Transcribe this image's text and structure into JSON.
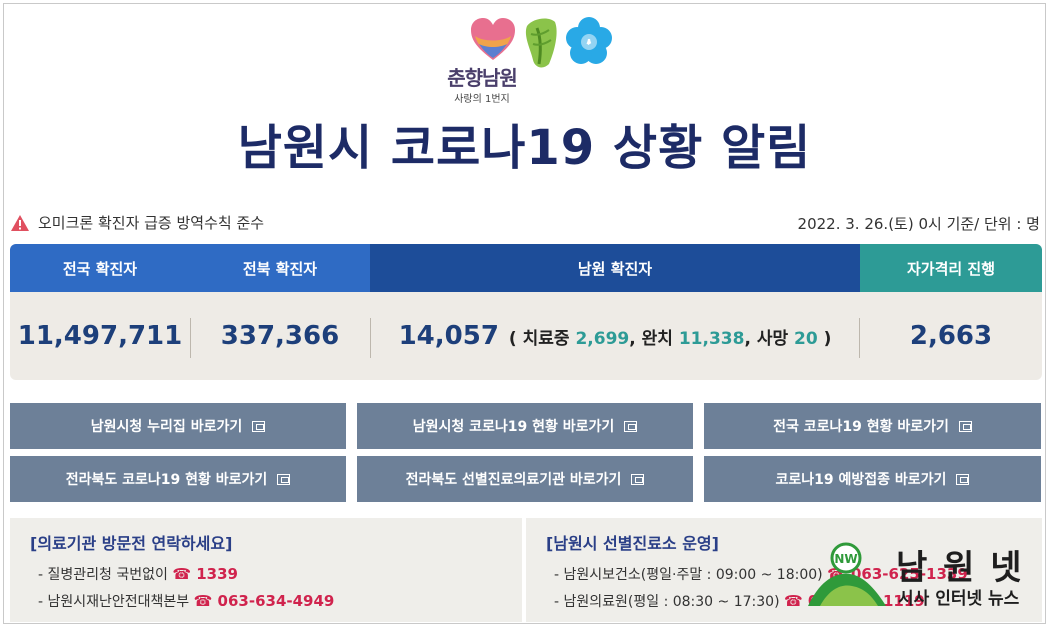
{
  "logo": {
    "name": "춘향남원",
    "tagline": "사랑의 1번지"
  },
  "title": "남원시 코로나19 상황 알림",
  "notice": "오미크론 확진자 급증 방역수칙 준수",
  "date": "2022. 3. 26.(토) 0시 기준/ 단위 : 명",
  "stats": {
    "headers": [
      "전국 확진자",
      "전북 확진자",
      "남원 확진자",
      "자가격리 진행"
    ],
    "national": "11,497,711",
    "jeonbuk": "337,366",
    "namwon": "14,057",
    "paren_open": "(",
    "treating_label": "치료중",
    "treating": "2,699",
    "recovered_label": "완치",
    "recovered": "11,338",
    "death_label": "사망",
    "death": "20",
    "paren_close": ")",
    "quarantine": "2,663",
    "comma": ","
  },
  "links": [
    "남원시청 누리집 바로가기",
    "남원시청 코로나19 현황 바로가기",
    "전국 코로나19 현황 바로가기",
    "전라북도 코로나19 현황 바로가기",
    "전라북도 선별진료의료기관 바로가기",
    "코로나19 예방접종 바로가기"
  ],
  "contact": {
    "title": "[의료기관 방문전 연락하세요]",
    "line1_label": "- 질병관리청 국번없이",
    "line1_phone": "☎ 1339",
    "line2_label": "- 남원시재난안전대책본부",
    "line2_phone": "☎ 063-634-4949"
  },
  "clinic": {
    "title": "[남원시 선별진료소 운영]",
    "line1_label": "- 남원시보건소(평일·주말 : 09:00 ~ 18:00)",
    "line1_phone": "☎ 063-625-1339",
    "line2_label": "- 남원의료원(평일 : 08:30 ~ 17:30)",
    "line2_phone": "☎ 063-620-1119"
  },
  "watermark": {
    "title": "남 원 넷",
    "subtitle": "시사 인터넷 뉴스",
    "badge": "NW"
  },
  "colors": {
    "navy": "#1d2b66",
    "blue": "#2f6bc4",
    "dark_blue": "#1d4d99",
    "teal": "#2d9b96",
    "button": "#6d8098",
    "phone_red": "#d0234d"
  }
}
